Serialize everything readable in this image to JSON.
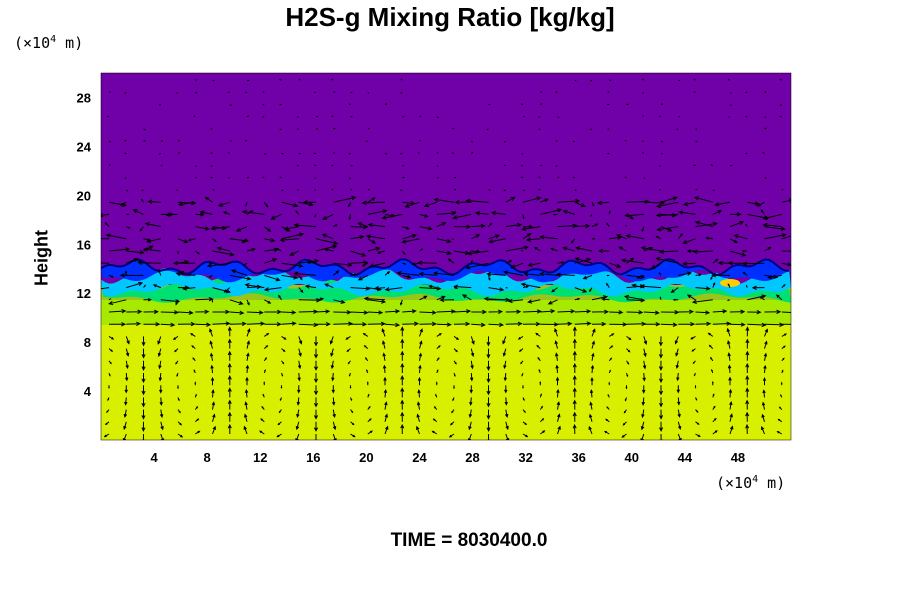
{
  "chart_data": {
    "type": "heatmap",
    "title": "H2S-g Mixing Ratio [kg/kg]",
    "ylabel": "Height",
    "xlabel": "",
    "x_unit_label": "(×10⁴ m)",
    "y_unit_label": "(×10⁴ m)",
    "x_unit_prefix": "(×10",
    "x_unit_exp": "4",
    "x_unit_suffix": " m)",
    "y_unit_prefix": "(×10",
    "y_unit_exp": "4",
    "y_unit_suffix": " m)",
    "time_label": "TIME = 8030400.0",
    "xlim": [
      0,
      52
    ],
    "ylim": [
      0,
      30
    ],
    "x_ticks": [
      4,
      8,
      12,
      16,
      20,
      24,
      28,
      32,
      36,
      40,
      44,
      48
    ],
    "y_ticks": [
      4,
      8,
      12,
      16,
      20,
      24,
      28
    ],
    "fields": {
      "upper_layer": {
        "from_height": 13,
        "to_height": 30,
        "color": "#7000a8",
        "description_level": "low"
      },
      "mixing_zone": {
        "from_height": 11,
        "to_height": 14,
        "colors": [
          "#0030ff",
          "#00c8ff",
          "#00e070",
          "#a0e800"
        ]
      },
      "lower_layer": {
        "from_height": 0,
        "to_height": 11,
        "color": "#d8f000",
        "description_level": "high"
      }
    },
    "vectors": "wind vector field overlay (arrows)",
    "grid": false
  }
}
